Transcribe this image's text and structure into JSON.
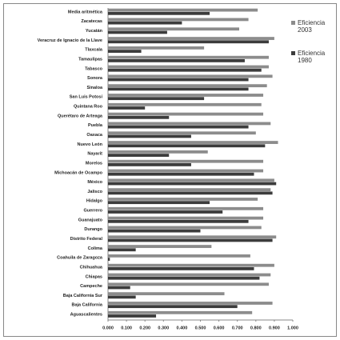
{
  "chart_data": {
    "type": "bar",
    "orientation": "horizontal",
    "categories": [
      "Media aritmética",
      "Zacatecas",
      "Yucatán",
      "Veracruz de Ignacio de la Llave",
      "Tlaxcala",
      "Tamaulipas",
      "Tabasco",
      "Sonora",
      "Sinaloa",
      "San Luis Potosí",
      "Quintana Roo",
      "Querétaro de Arteaga",
      "Puebla",
      "Oaxaca",
      "Nuevo León",
      "Nayarit",
      "Morelos",
      "Michoacán de Ocampo",
      "México",
      "Jalisco",
      "Hidalgo",
      "Guerrero",
      "Guanajuato",
      "Durango",
      "Distrito Federal",
      "Colima",
      "Coahuila de Zaragoza",
      "Chihuahua",
      "Chiapas",
      "Campeche",
      "Baja California Sur",
      "Baja California",
      "Aguascalientes"
    ],
    "series": [
      {
        "name": "Eficiencia 2003",
        "color": "#8c8c8c",
        "values": [
          0.81,
          0.76,
          0.71,
          0.9,
          0.52,
          0.87,
          0.87,
          0.89,
          0.86,
          0.84,
          0.83,
          0.84,
          0.88,
          0.8,
          0.92,
          0.54,
          0.84,
          0.84,
          0.9,
          0.88,
          0.81,
          0.84,
          0.84,
          0.83,
          0.91,
          0.56,
          0.77,
          0.9,
          0.88,
          0.87,
          0.63,
          0.89,
          0.78
        ]
      },
      {
        "name": "Eficiencia 1980",
        "color": "#3c3c3c",
        "values": [
          0.55,
          0.4,
          0.32,
          0.87,
          0.18,
          0.74,
          0.83,
          0.76,
          0.76,
          0.52,
          0.2,
          0.33,
          0.76,
          0.45,
          0.85,
          0.33,
          0.45,
          0.79,
          0.91,
          0.89,
          0.55,
          0.62,
          0.76,
          0.5,
          0.89,
          0.15,
          0.01,
          0.79,
          0.82,
          0.12,
          0.15,
          0.7,
          0.26
        ]
      }
    ],
    "xlim": [
      0,
      1
    ],
    "xticks": [
      {
        "value": 0,
        "label": "0.000"
      },
      {
        "value": 0.1,
        "label": "0.100"
      },
      {
        "value": 0.2,
        "label": "0.200"
      },
      {
        "value": 0.3,
        "label": "0.300"
      },
      {
        "value": 0.4,
        "label": "0.400"
      },
      {
        "value": 0.5,
        "label": "0.500"
      },
      {
        "value": 0.6,
        "label": "0.600"
      },
      {
        "value": 0.7,
        "label": "0.700"
      },
      {
        "value": 0.8,
        "label": "0.800"
      },
      {
        "value": 0.9,
        "label": "0.900"
      },
      {
        "value": 1,
        "label": "1.000"
      }
    ],
    "legend": "right"
  }
}
